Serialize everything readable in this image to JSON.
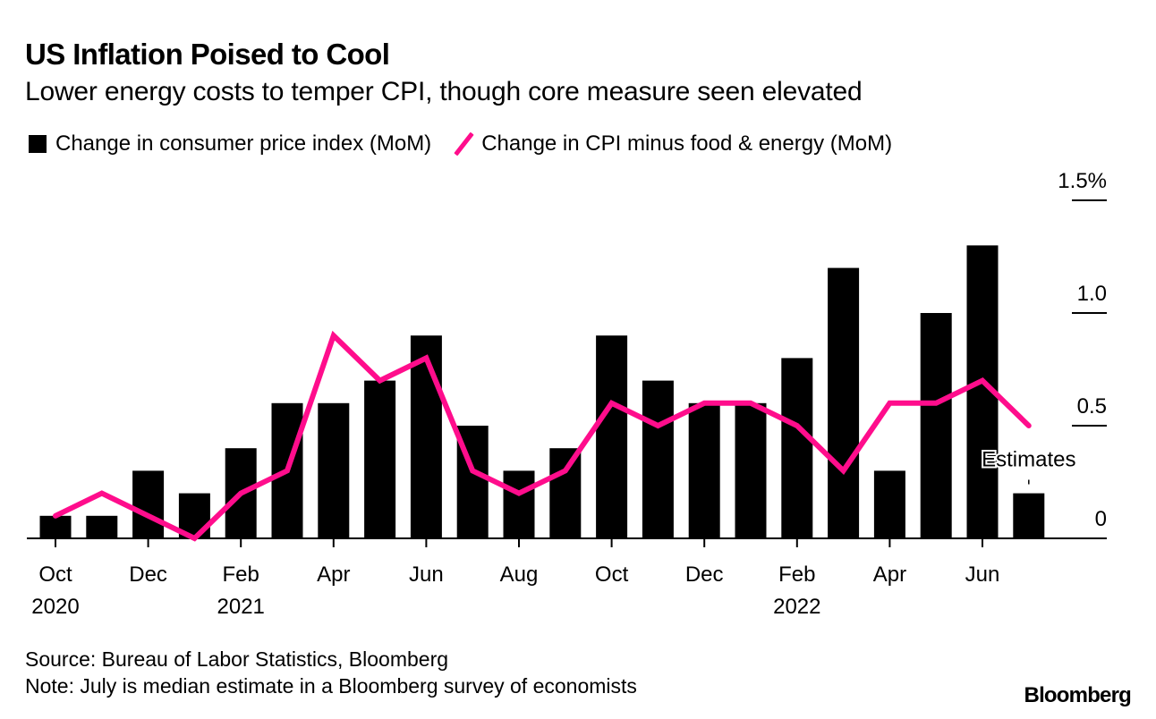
{
  "header": {
    "title": "US Inflation Poised to Cool",
    "subtitle": "Lower energy costs to temper CPI, though core measure seen elevated"
  },
  "legend": {
    "items": [
      {
        "label": "Change in consumer price index (MoM)",
        "type": "bar",
        "color": "#000000"
      },
      {
        "label": "Change in CPI minus food & energy (MoM)",
        "type": "line",
        "color": "#ff0d8c"
      }
    ]
  },
  "footer": {
    "source": "Source: Bureau of Labor Statistics, Bloomberg",
    "note": "Note: July is median estimate in a Bloomberg survey of economists",
    "brand": "Bloomberg"
  },
  "chart_data": {
    "type": "bar",
    "title": "US Inflation Poised to Cool",
    "subtitle": "Lower energy costs to temper CPI, though core measure seen elevated",
    "xlabel": "",
    "ylabel": "",
    "ylim": [
      0,
      1.5
    ],
    "y_ticks": [
      "0",
      "0.5",
      "1.0",
      "1.5%"
    ],
    "y_tick_values": [
      0,
      0.5,
      1.0,
      1.5
    ],
    "y_axis_side": "right",
    "grid": false,
    "legend_position": "top-left",
    "categories": [
      "Oct 2020",
      "Nov 2020",
      "Dec 2020",
      "Jan 2021",
      "Feb 2021",
      "Mar 2021",
      "Apr 2021",
      "May 2021",
      "Jun 2021",
      "Jul 2021",
      "Aug 2021",
      "Sep 2021",
      "Oct 2021",
      "Nov 2021",
      "Dec 2021",
      "Jan 2022",
      "Feb 2022",
      "Mar 2022",
      "Apr 2022",
      "May 2022",
      "Jun 2022",
      "Jul 2022"
    ],
    "x_tick_labels": [
      {
        "index": 0,
        "month": "Oct",
        "year": "2020"
      },
      {
        "index": 2,
        "month": "Dec",
        "year": ""
      },
      {
        "index": 4,
        "month": "Feb",
        "year": "2021"
      },
      {
        "index": 6,
        "month": "Apr",
        "year": ""
      },
      {
        "index": 8,
        "month": "Jun",
        "year": ""
      },
      {
        "index": 10,
        "month": "Aug",
        "year": ""
      },
      {
        "index": 12,
        "month": "Oct",
        "year": ""
      },
      {
        "index": 14,
        "month": "Dec",
        "year": ""
      },
      {
        "index": 16,
        "month": "Feb",
        "year": "2022"
      },
      {
        "index": 18,
        "month": "Apr",
        "year": ""
      },
      {
        "index": 20,
        "month": "Jun",
        "year": ""
      }
    ],
    "series": [
      {
        "name": "Change in consumer price index (MoM)",
        "type": "bar",
        "color": "#000000",
        "values": [
          0.1,
          0.1,
          0.3,
          0.2,
          0.4,
          0.6,
          0.6,
          0.7,
          0.9,
          0.5,
          0.3,
          0.4,
          0.9,
          0.7,
          0.6,
          0.6,
          0.8,
          1.2,
          0.3,
          1.0,
          1.3,
          0.2
        ]
      },
      {
        "name": "Change in CPI minus food & energy (MoM)",
        "type": "line",
        "color": "#ff0d8c",
        "values": [
          0.1,
          0.2,
          0.1,
          0.0,
          0.2,
          0.3,
          0.9,
          0.7,
          0.8,
          0.3,
          0.2,
          0.3,
          0.6,
          0.5,
          0.6,
          0.6,
          0.5,
          0.3,
          0.6,
          0.6,
          0.7,
          0.5
        ]
      }
    ],
    "annotations": [
      {
        "text": "Estimates",
        "index": 21
      }
    ]
  }
}
